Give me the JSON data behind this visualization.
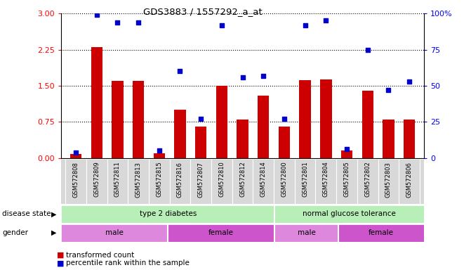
{
  "title": "GDS3883 / 1557292_a_at",
  "samples": [
    "GSM572808",
    "GSM572809",
    "GSM572811",
    "GSM572813",
    "GSM572815",
    "GSM572816",
    "GSM572807",
    "GSM572810",
    "GSM572812",
    "GSM572814",
    "GSM572800",
    "GSM572801",
    "GSM572804",
    "GSM572805",
    "GSM572802",
    "GSM572803",
    "GSM572806"
  ],
  "bar_values": [
    0.08,
    2.3,
    1.6,
    1.6,
    0.1,
    1.0,
    0.65,
    1.5,
    0.8,
    1.3,
    0.65,
    1.62,
    1.63,
    0.15,
    1.4,
    0.8,
    0.8
  ],
  "scatter_values_pct": [
    3.5,
    99,
    94,
    94,
    5,
    60,
    27,
    92,
    56,
    57,
    27,
    92,
    95,
    6,
    75,
    47,
    53
  ],
  "bar_color": "#cc0000",
  "scatter_color": "#0000cc",
  "ylim_left": [
    0,
    3
  ],
  "ylim_right": [
    0,
    100
  ],
  "yticks_left": [
    0,
    0.75,
    1.5,
    2.25,
    3.0
  ],
  "yticks_right": [
    0,
    25,
    50,
    75,
    100
  ],
  "disease_state_groups": [
    {
      "label": "type 2 diabetes",
      "start": 0,
      "end": 10,
      "color": "#aaddaa"
    },
    {
      "label": "normal glucose tolerance",
      "start": 10,
      "end": 17,
      "color": "#aaddaa"
    }
  ],
  "gender_groups": [
    {
      "label": "male",
      "start": 0,
      "end": 5,
      "color": "#dd88dd"
    },
    {
      "label": "female",
      "start": 5,
      "end": 10,
      "color": "#cc55cc"
    },
    {
      "label": "male",
      "start": 10,
      "end": 13,
      "color": "#dd88dd"
    },
    {
      "label": "female",
      "start": 13,
      "end": 17,
      "color": "#cc55cc"
    }
  ],
  "disease_label": "disease state",
  "gender_label": "gender",
  "legend_bar": "transformed count",
  "legend_scatter": "percentile rank within the sample",
  "background_color": "#ffffff",
  "sample_bg_color": "#d8d8d8",
  "bar_width": 0.55
}
